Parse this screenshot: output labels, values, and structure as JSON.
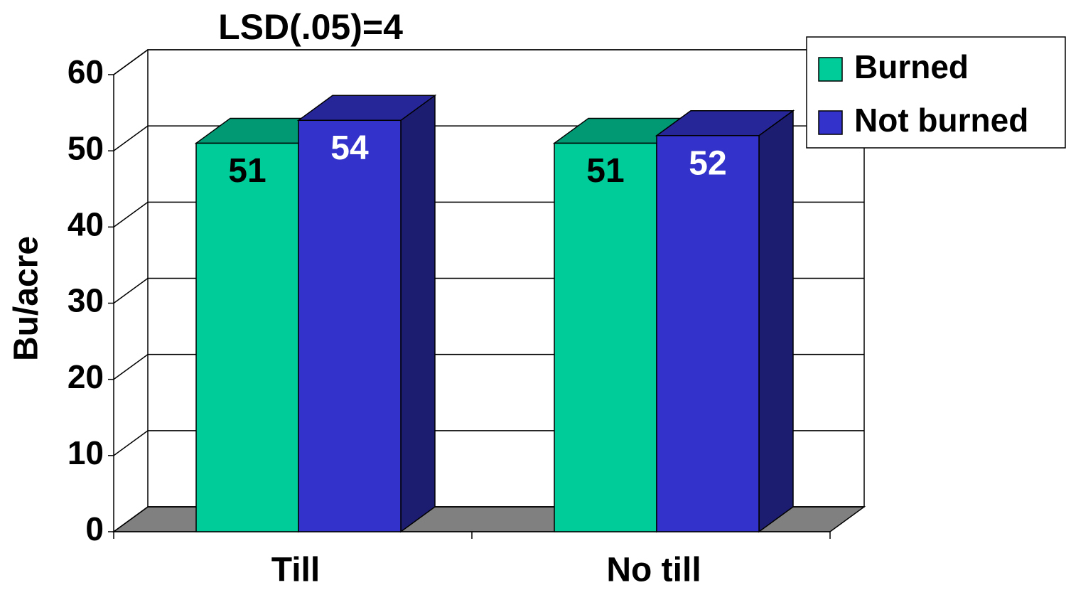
{
  "chart_data": {
    "type": "bar3d",
    "title": "LSD(.05)=4",
    "y_label": "Bu/acre",
    "categories": [
      "Till",
      "No till"
    ],
    "series": [
      {
        "name": "Burned",
        "color": "#00CC99",
        "label_color": "#000000",
        "values": [
          51,
          51
        ]
      },
      {
        "name": "Not burned",
        "color": "#3333CC",
        "label_color": "#FFFFFF",
        "values": [
          54,
          52
        ]
      }
    ],
    "ylim": [
      0,
      60
    ],
    "yticks": [
      0,
      10,
      20,
      30,
      40,
      50,
      60
    ],
    "grid": true,
    "legend": "top-right"
  }
}
